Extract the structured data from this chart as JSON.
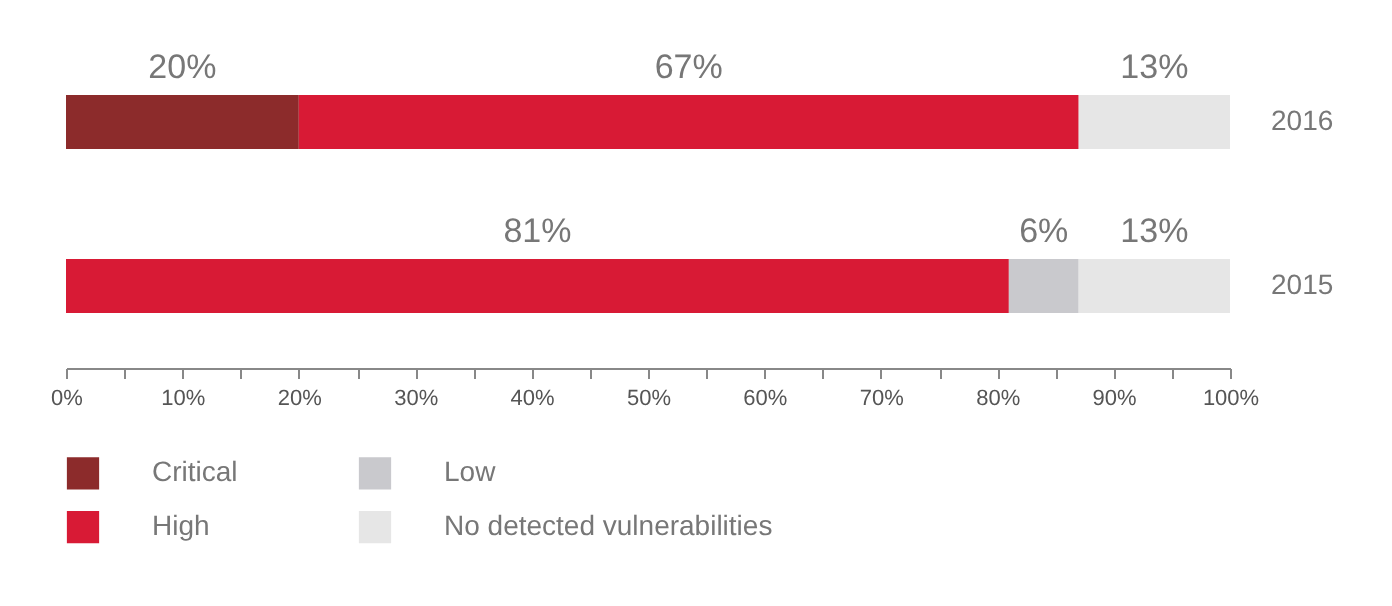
{
  "chart_data": {
    "type": "bar",
    "orientation": "horizontal",
    "stacked": true,
    "categories": [
      "2016",
      "2015"
    ],
    "series": [
      {
        "name": "Critical",
        "color": "#8c2b2b",
        "values": [
          20,
          0
        ],
        "value_labels": [
          "20%",
          null
        ]
      },
      {
        "name": "High",
        "color": "#d81a35",
        "values": [
          67,
          81
        ],
        "value_labels": [
          "67%",
          "81%"
        ]
      },
      {
        "name": "Low",
        "color": "#c9c9cd",
        "values": [
          0,
          6
        ],
        "value_labels": [
          null,
          "6%"
        ]
      },
      {
        "name": "No detected vulnerabilities",
        "color": "#e6e6e6",
        "values": [
          13,
          13
        ],
        "value_labels": [
          "13%",
          "13%"
        ]
      }
    ],
    "xlim": [
      0,
      100
    ],
    "xticks": [
      {
        "value": 0,
        "label": "0%"
      },
      {
        "value": 5,
        "label": null
      },
      {
        "value": 10,
        "label": "10%"
      },
      {
        "value": 15,
        "label": null
      },
      {
        "value": 20,
        "label": "20%"
      },
      {
        "value": 25,
        "label": null
      },
      {
        "value": 30,
        "label": "30%"
      },
      {
        "value": 35,
        "label": null
      },
      {
        "value": 40,
        "label": "40%"
      },
      {
        "value": 45,
        "label": null
      },
      {
        "value": 50,
        "label": "50%"
      },
      {
        "value": 55,
        "label": null
      },
      {
        "value": 60,
        "label": "60%"
      },
      {
        "value": 65,
        "label": null
      },
      {
        "value": 70,
        "label": "70%"
      },
      {
        "value": 75,
        "label": null
      },
      {
        "value": 80,
        "label": "80%"
      },
      {
        "value": 85,
        "label": null
      },
      {
        "value": 90,
        "label": "90%"
      },
      {
        "value": 95,
        "label": null
      },
      {
        "value": 100,
        "label": "100%"
      }
    ],
    "grid": false,
    "legend": "bottom left"
  }
}
